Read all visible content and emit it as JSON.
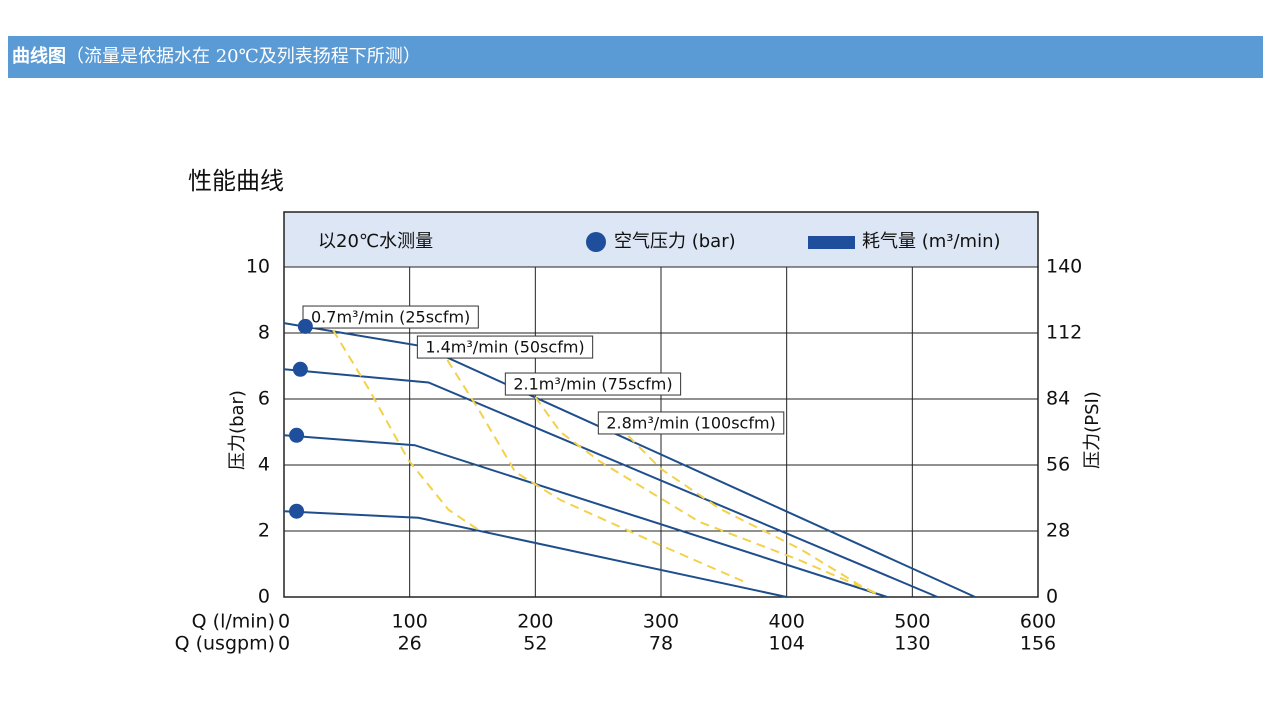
{
  "header": {
    "title": "曲线图",
    "note": "（流量是依据水在 20℃及列表扬程下所测）"
  },
  "chart_data": {
    "type": "line",
    "title": "性能曲线",
    "annotation": "以20℃水测量",
    "legend_items": [
      {
        "label": "空气压力 (bar)",
        "color": "#1f4e9c",
        "shape": "circle"
      },
      {
        "label": "耗气量 (m³/min)",
        "color": "#1f4e9c",
        "shape": "rect"
      }
    ],
    "xlabel": "Q (l/min)",
    "x2label": "Q (usgpm)",
    "ylabel": "压力(bar)",
    "y2label": "压力(PSI)",
    "xlim": [
      0,
      600
    ],
    "xticks": [
      0,
      100,
      200,
      300,
      400,
      500,
      600
    ],
    "x2lim": [
      0,
      156
    ],
    "x2ticks": [
      0,
      26,
      52,
      78,
      104,
      130,
      156
    ],
    "ylim": [
      0,
      10
    ],
    "yticks": [
      0,
      2,
      4,
      6,
      8,
      10
    ],
    "y2lim": [
      0,
      140
    ],
    "y2ticks": [
      0,
      28,
      56,
      84,
      112,
      140
    ],
    "grid": true,
    "pressure_points": {
      "color": "#1f4e9c",
      "x": [
        17,
        13,
        10,
        10
      ],
      "values": [
        8.2,
        6.9,
        4.9,
        2.6
      ]
    },
    "series": [
      {
        "color": "#1f4e8c",
        "x": [
          0,
          110,
          550
        ],
        "values": [
          8.3,
          7.6,
          0
        ]
      },
      {
        "color": "#1f4e8c",
        "x": [
          0,
          115,
          520
        ],
        "values": [
          6.9,
          6.5,
          0
        ]
      },
      {
        "color": "#1f4e8c",
        "x": [
          0,
          104,
          480
        ],
        "values": [
          4.9,
          4.6,
          0
        ]
      },
      {
        "color": "#1f4e8c",
        "x": [
          0,
          107,
          400
        ],
        "values": [
          2.6,
          2.4,
          0
        ]
      },
      {
        "name": "0.7m³/min (25scfm)",
        "color": "#f2d14b",
        "dashed": true,
        "x": [
          39,
          68,
          99,
          131,
          155
        ],
        "values": [
          8.09,
          6.27,
          4.15,
          2.64,
          2.03
        ]
      },
      {
        "name": "1.4m³/min (50scfm)",
        "color": "#f2d14b",
        "dashed": true,
        "x": [
          130,
          156,
          184,
          220,
          299,
          367
        ],
        "values": [
          7.18,
          5.61,
          3.79,
          2.94,
          1.58,
          0.45
        ]
      },
      {
        "name": "2.1m³/min (75scfm)",
        "color": "#f2d14b",
        "dashed": true,
        "x": [
          200,
          220,
          252,
          331,
          410,
          474
        ],
        "values": [
          6.06,
          5.0,
          4.09,
          2.27,
          1.12,
          0.06
        ]
      },
      {
        "name": "2.8m³/min (100scfm)",
        "color": "#f2d14b",
        "dashed": true,
        "x": [
          274,
          300,
          347,
          411,
          458,
          474
        ],
        "values": [
          4.88,
          3.88,
          2.67,
          1.45,
          0.36,
          0.06
        ]
      }
    ]
  }
}
